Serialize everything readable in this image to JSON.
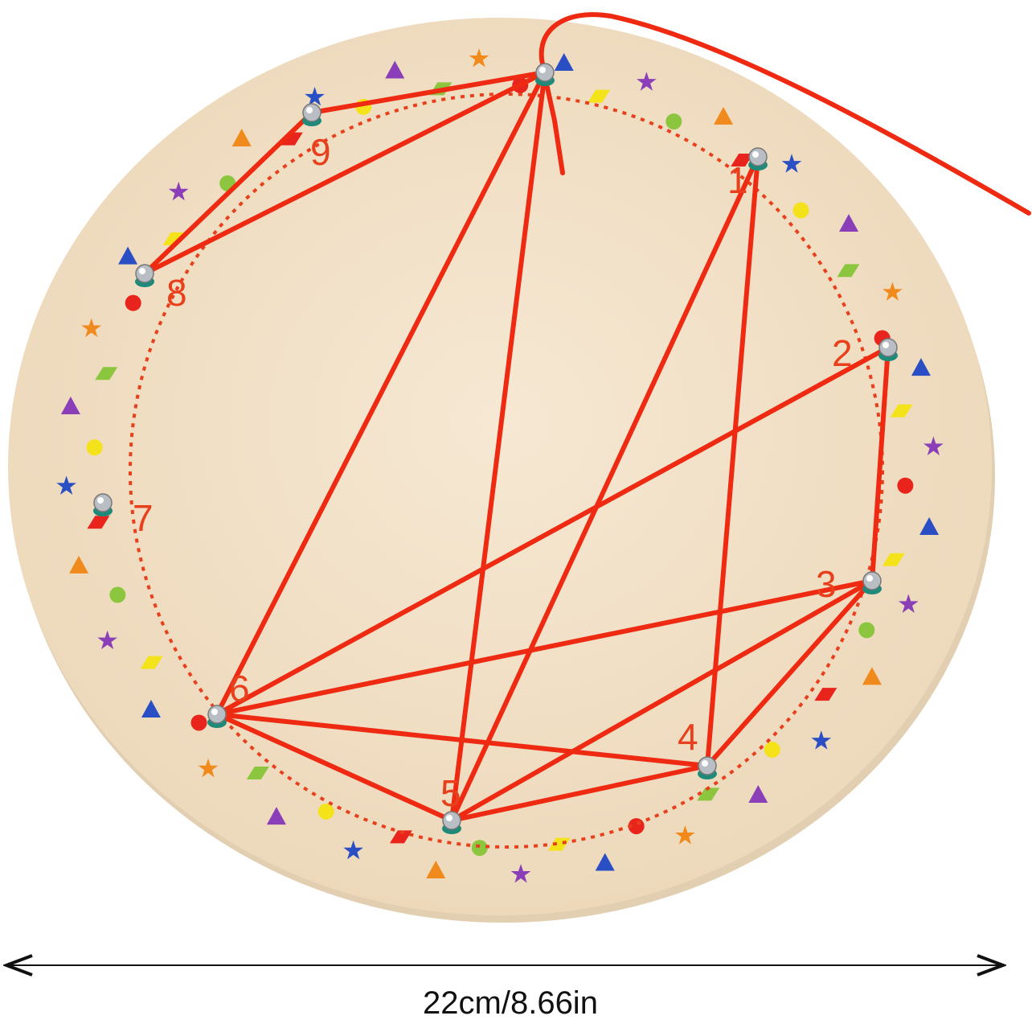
{
  "product": {
    "pin_labels": [
      "1",
      "2",
      "3",
      "4",
      "5",
      "6",
      "7",
      "8",
      "9"
    ],
    "dimension_label": "22cm/8.66in"
  },
  "colors": {
    "board": "#f3e3cc",
    "string": "#ee2a12",
    "labels": "#e8401c",
    "pin": "#b9bec4",
    "pin_base": "#1f8a7a"
  }
}
